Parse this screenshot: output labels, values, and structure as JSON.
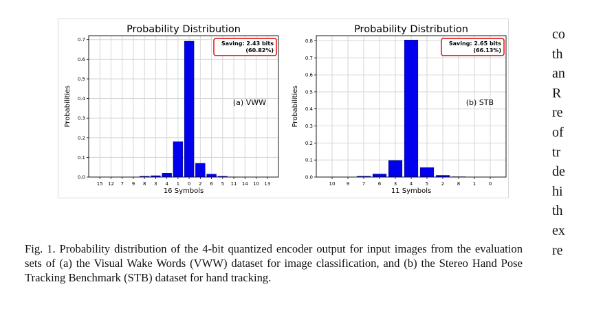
{
  "figure": {
    "charts": [
      {
        "chart_data": {
          "type": "bar",
          "title": "Probability Distribution",
          "xlabel": "16 Symbols",
          "ylabel": "Probabilities",
          "categories": [
            "15",
            "12",
            "7",
            "9",
            "8",
            "3",
            "4",
            "1",
            "0",
            "2",
            "6",
            "5",
            "11",
            "14",
            "10",
            "13"
          ],
          "values": [
            0.0,
            0.0,
            0.0,
            0.0,
            0.004,
            0.007,
            0.02,
            0.18,
            0.692,
            0.07,
            0.015,
            0.004,
            0.001,
            0.0,
            0.0,
            0.0
          ],
          "ylim": [
            0,
            0.72
          ],
          "yticks": [
            0.0,
            0.1,
            0.2,
            0.3,
            0.4,
            0.5,
            0.6,
            0.7
          ],
          "ytick_labels": [
            "0.0",
            "0.1",
            "0.2",
            "0.3",
            "0.4",
            "0.5",
            "0.6",
            "0.7"
          ],
          "grid": true,
          "bar_color": "#0000ee",
          "saving_box": [
            "Saving: 2.43 bits",
            "(60.82%)"
          ],
          "annotation": "(a) VWW"
        }
      },
      {
        "chart_data": {
          "type": "bar",
          "title": "Probability Distribution",
          "xlabel": "11 Symbols",
          "ylabel": "Probabilities",
          "categories": [
            "10",
            "9",
            "7",
            "6",
            "3",
            "4",
            "5",
            "2",
            "8",
            "1",
            "0"
          ],
          "values": [
            0.0,
            0.0,
            0.005,
            0.018,
            0.098,
            0.805,
            0.056,
            0.01,
            0.002,
            0.0,
            0.0
          ],
          "ylim": [
            0,
            0.83
          ],
          "yticks": [
            0.0,
            0.1,
            0.2,
            0.3,
            0.4,
            0.5,
            0.6,
            0.7,
            0.8
          ],
          "ytick_labels": [
            "0.0",
            "0.1",
            "0.2",
            "0.3",
            "0.4",
            "0.5",
            "0.6",
            "0.7",
            "0.8"
          ],
          "grid": true,
          "bar_color": "#0000ee",
          "saving_box": [
            "Saving: 2.65 bits",
            "(66.13%)"
          ],
          "annotation": "(b) STB"
        }
      }
    ],
    "caption_lines": [
      "Fig. 1.  Probability distribution of the 4-bit quantized encoder output for input",
      "images from the evaluation sets of (a) the Visual Wake Words (VWW) dataset",
      "for image classification, and (b) the Stereo Hand Pose Tracking Benchmark",
      "(STB) dataset for hand tracking."
    ]
  },
  "side_column_lines": [
    "co",
    "th",
    "an",
    "R",
    "re",
    "of",
    "tr",
    "de",
    "hi",
    "th",
    "ex",
    "re"
  ]
}
